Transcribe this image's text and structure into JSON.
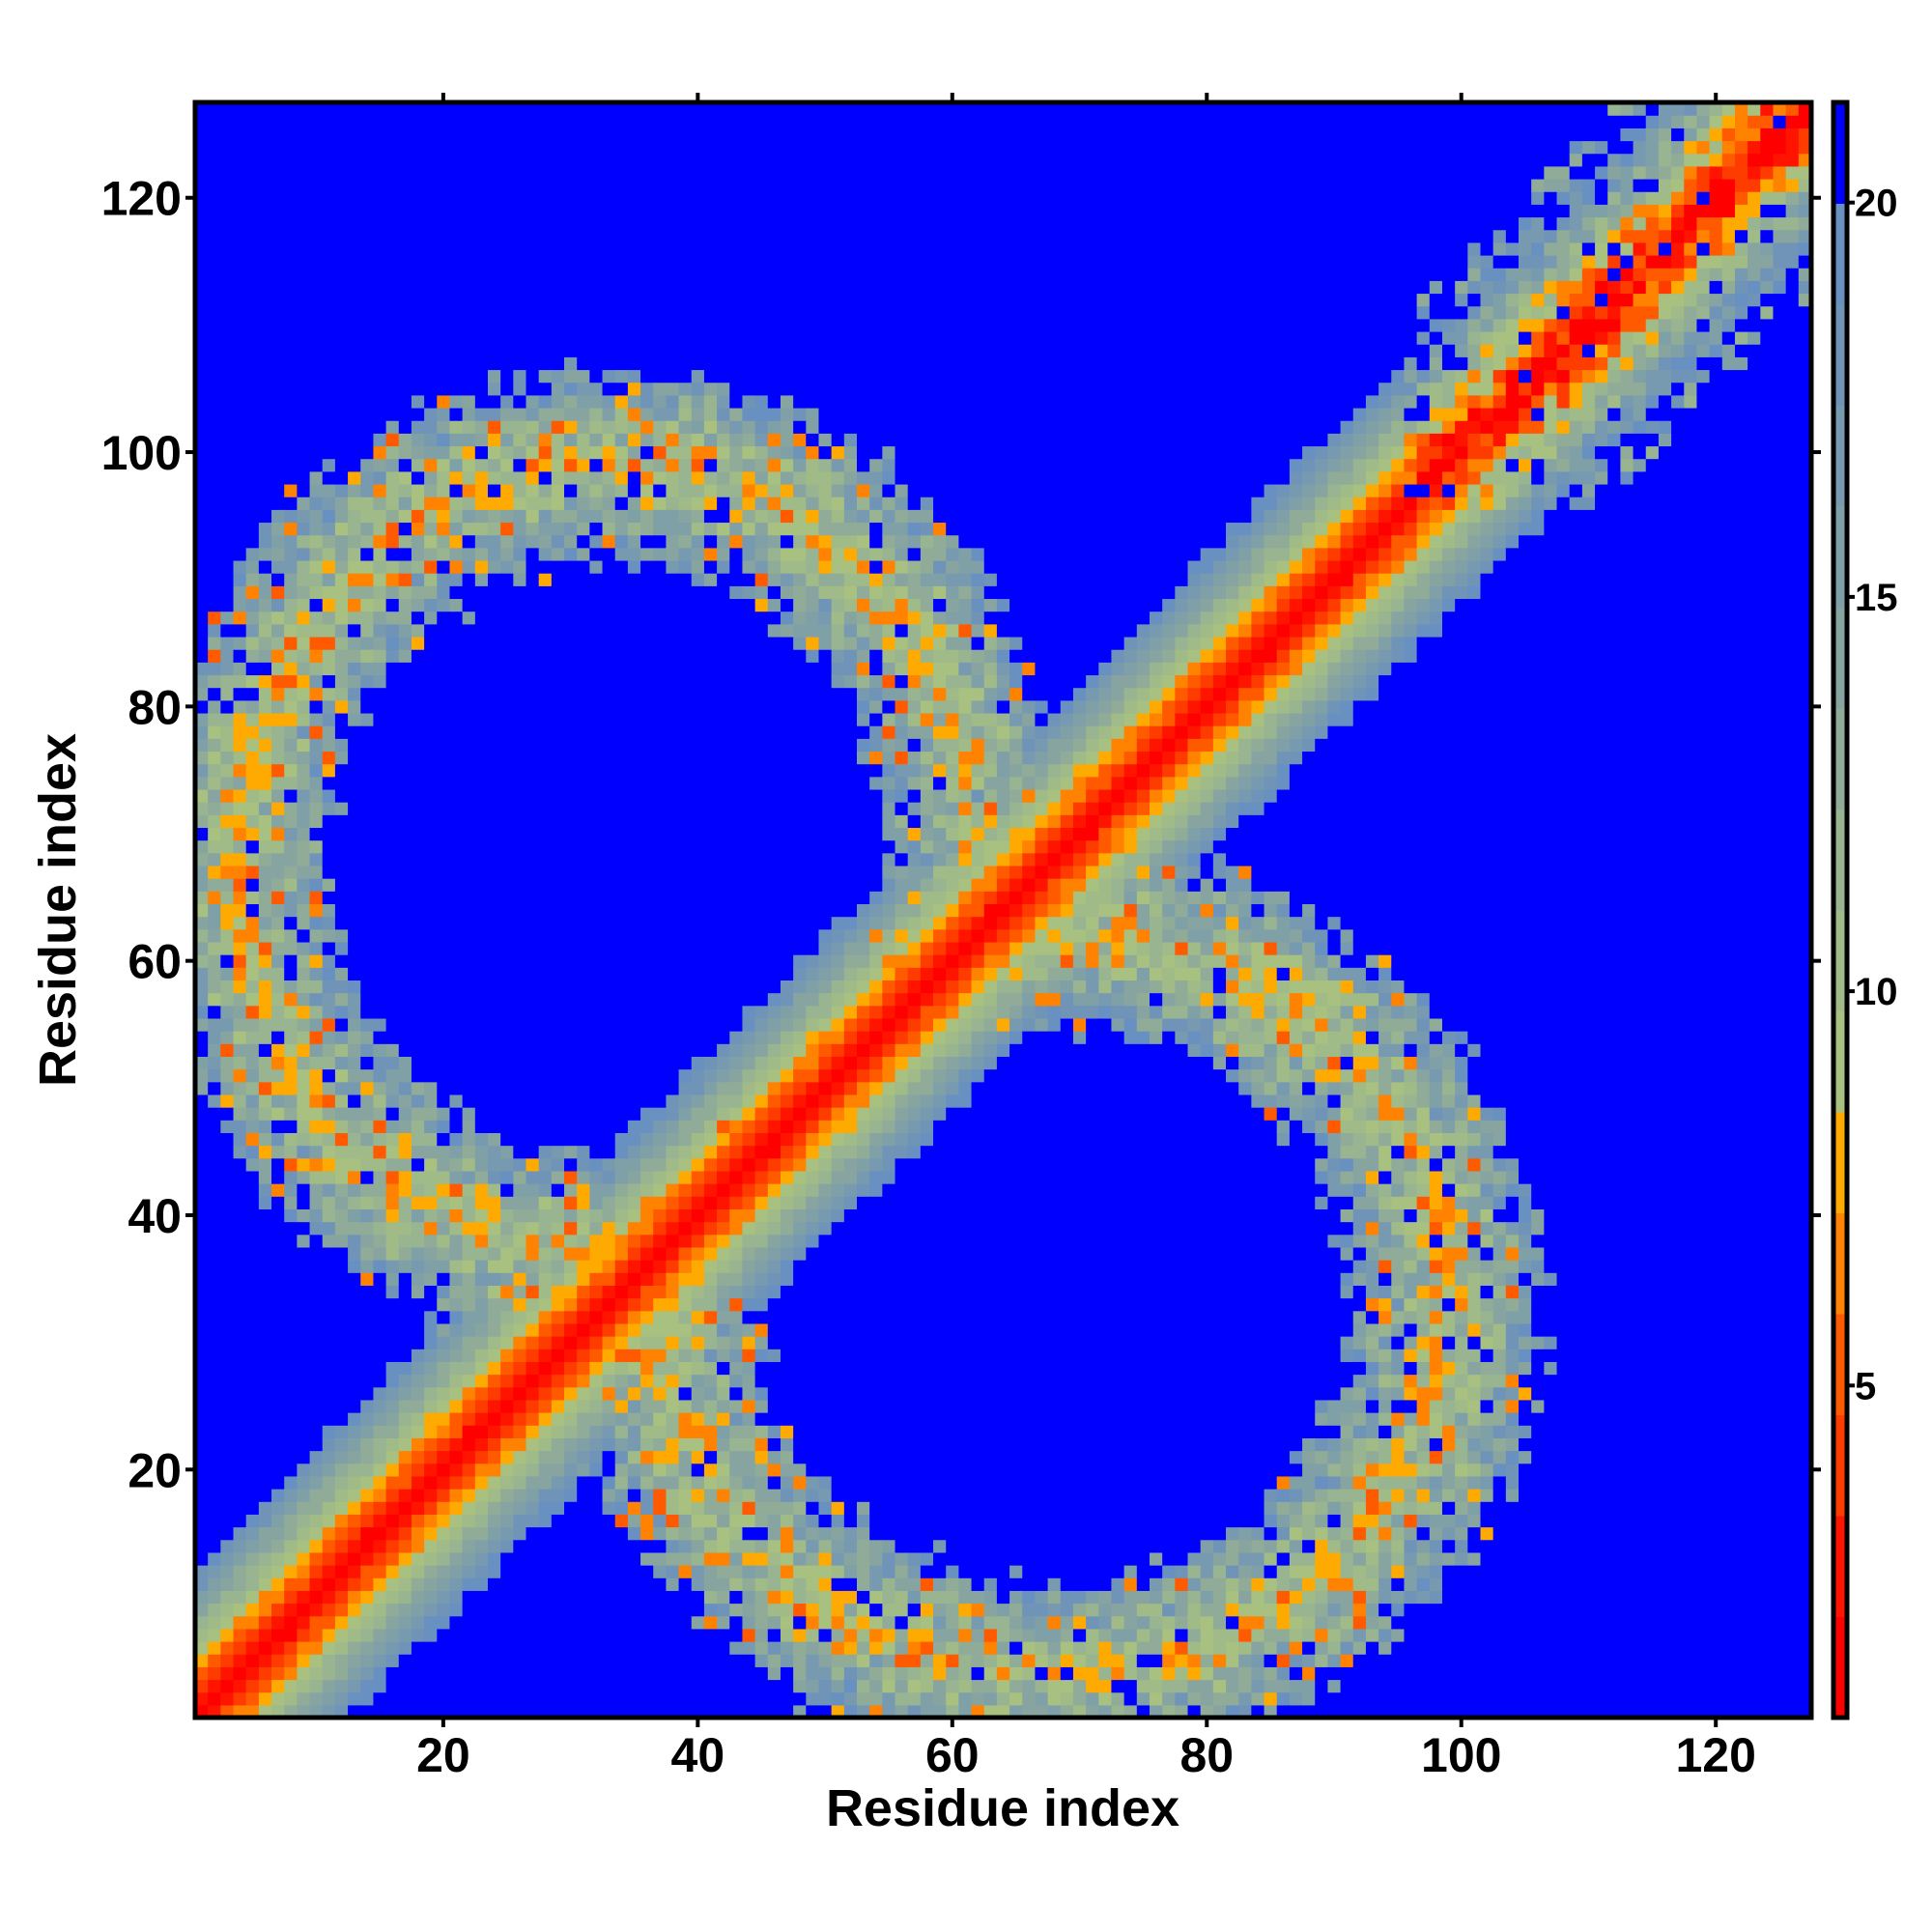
{
  "chart_data": {
    "type": "heatmap",
    "title": "",
    "xlabel": "Residue index",
    "ylabel": "Residue index",
    "xlim": [
      0.5,
      127.5
    ],
    "ylim": [
      0.5,
      127.5
    ],
    "n_residues": 127,
    "x_ticks": [
      "20",
      "40",
      "60",
      "80",
      "100",
      "120"
    ],
    "y_ticks": [
      "20",
      "40",
      "60",
      "80",
      "100",
      "120"
    ],
    "x_tick_values": [
      20,
      40,
      60,
      80,
      100,
      120
    ],
    "y_tick_values": [
      20,
      40,
      60,
      80,
      100,
      120
    ],
    "colorbar": {
      "range": [
        0.79,
        21.27
      ],
      "ticks": [
        "5",
        "10",
        "15",
        "20"
      ],
      "tick_values": [
        5,
        10,
        15,
        20
      ],
      "colors": [
        "#ff0000",
        "#ff1400",
        "#ff3c00",
        "#ff5a00",
        "#ff8200",
        "#ffaa00",
        "#a8c080",
        "#a0ba88",
        "#98b490",
        "#90ac98",
        "#88a4a0",
        "#80a0a8",
        "#789ab0",
        "#7094b8",
        "#6890c0",
        "#0000ff"
      ]
    },
    "structure": {
      "diagonal_band": {
        "value_at_zero": 1.0,
        "slope_per_residue": 1.6,
        "max_offset": 12
      },
      "rings": [
        {
          "side": "lower-right",
          "center": [
            68,
            33
          ],
          "radii": [
            31,
            29
          ],
          "half_thickness": 7
        },
        {
          "side": "upper-left",
          "center": [
            33,
            68
          ],
          "radii": [
            29,
            31
          ],
          "half_thickness": 7
        }
      ],
      "noise_seed": 17
    }
  }
}
